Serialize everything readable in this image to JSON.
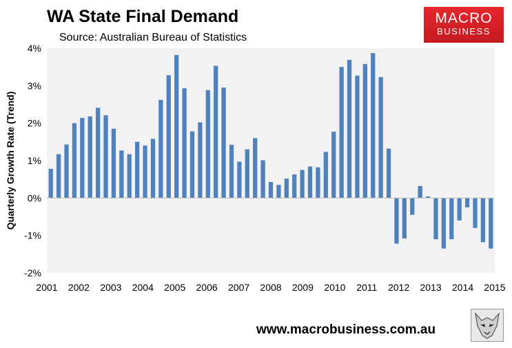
{
  "header": {
    "title": "WA State Final Demand",
    "subtitle": "Source: Australian Bureau of Statistics"
  },
  "logo": {
    "line1": "MACRO",
    "line2": "BUSINESS"
  },
  "footer": {
    "url": "www.macrobusiness.com.au"
  },
  "colors": {
    "bar": "#4f81bd",
    "plot_bg": "#f2f2f2",
    "logo_red": "#e0252b"
  },
  "chart_data": {
    "type": "bar",
    "title": "WA State Final Demand",
    "xlabel": "",
    "ylabel": "Quarterly Growth Rate (Trend)",
    "ylim": [
      -2,
      4
    ],
    "yticks": [
      "-2%",
      "-1%",
      "0%",
      "1%",
      "2%",
      "3%",
      "4%"
    ],
    "xticks": [
      "2001",
      "2002",
      "2003",
      "2004",
      "2005",
      "2006",
      "2007",
      "2008",
      "2009",
      "2010",
      "2011",
      "2012",
      "2013",
      "2014",
      "2015"
    ],
    "grid": false,
    "series": [
      {
        "name": "WA State Final Demand",
        "values": [
          0.78,
          1.17,
          1.43,
          2.0,
          2.14,
          2.18,
          2.41,
          2.21,
          1.85,
          1.27,
          1.17,
          1.5,
          1.4,
          1.58,
          2.62,
          3.28,
          3.82,
          2.93,
          1.78,
          2.02,
          2.88,
          3.53,
          2.95,
          1.42,
          0.97,
          1.3,
          1.6,
          1.01,
          0.43,
          0.35,
          0.52,
          0.63,
          0.75,
          0.84,
          0.82,
          1.23,
          1.77,
          3.5,
          3.69,
          3.27,
          3.58,
          3.87,
          3.23,
          1.32,
          -1.22,
          -1.08,
          -0.45,
          0.32,
          0.04,
          -1.1,
          -1.35,
          -1.1,
          -0.6,
          -0.25,
          -0.8,
          -1.18,
          -1.35
        ]
      }
    ]
  }
}
